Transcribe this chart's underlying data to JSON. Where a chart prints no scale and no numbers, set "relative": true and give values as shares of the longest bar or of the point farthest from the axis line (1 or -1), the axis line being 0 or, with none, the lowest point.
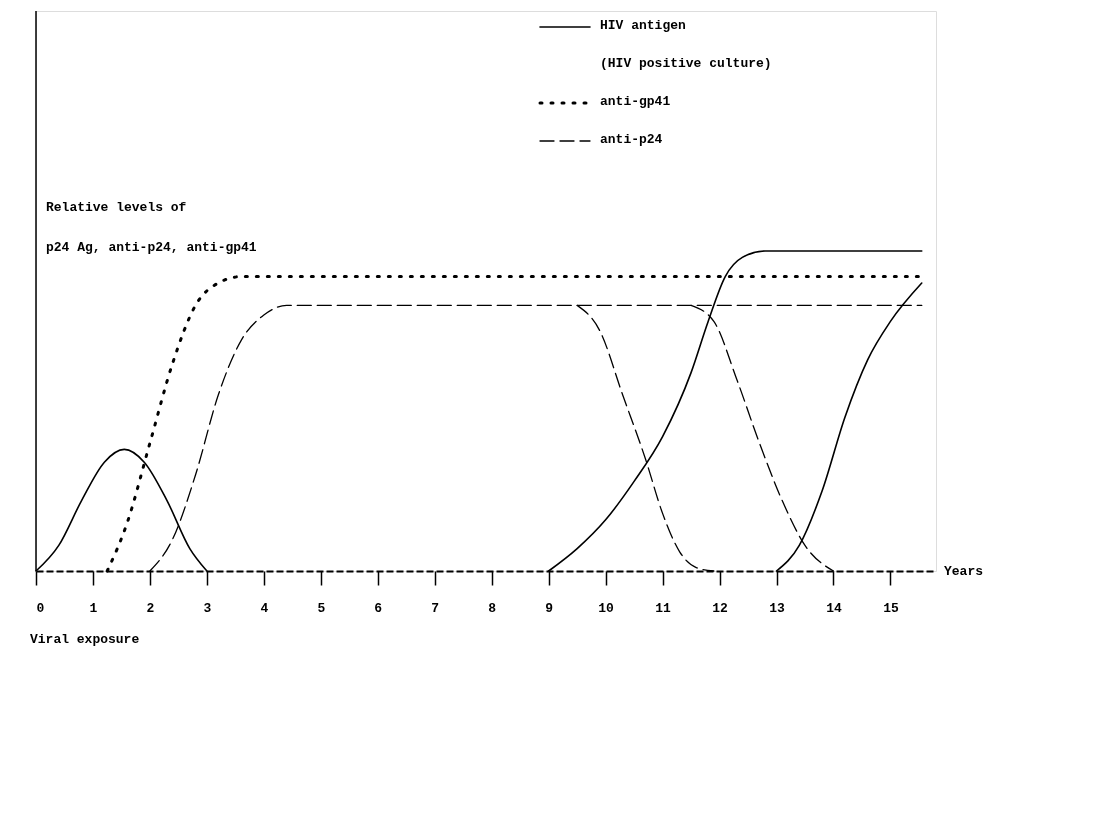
{
  "chart_data": {
    "type": "line",
    "relative": true,
    "xlabel": "Years",
    "ylabel": "Relative levels of\np24 Ag, anti-p24, anti-gp41",
    "xlim": [
      0,
      15.8
    ],
    "xticks": [
      0,
      1,
      2,
      3,
      4,
      5,
      6,
      7,
      8,
      9,
      10,
      11,
      12,
      13,
      14,
      15
    ],
    "grid": false,
    "legend": "top right",
    "annotations": [
      "Viral exposure"
    ],
    "series": [
      {
        "name": "HIV antigen\n(HIV positive culture)",
        "color": "#000000",
        "line_style": "solid",
        "x": [
          0,
          0.4,
          0.8,
          1.2,
          1.55,
          1.9,
          2.3,
          2.7,
          3.0
        ],
        "values": [
          0,
          0.08,
          0.22,
          0.34,
          0.38,
          0.34,
          0.22,
          0.07,
          0
        ]
      },
      {
        "color": "#000000",
        "line_style": "solid",
        "x": [
          9,
          9.5,
          10,
          10.5,
          11,
          11.5,
          11.8,
          12.1,
          12.4,
          12.8,
          15.55
        ],
        "values": [
          0,
          0.07,
          0.16,
          0.28,
          0.42,
          0.62,
          0.78,
          0.92,
          0.98,
          1.0,
          1.0
        ]
      },
      {
        "color": "#000000",
        "line_style": "solid",
        "x": [
          13,
          13.4,
          13.8,
          14.2,
          14.6,
          15.0,
          15.55
        ],
        "values": [
          0,
          0.08,
          0.25,
          0.48,
          0.66,
          0.78,
          0.9
        ]
      },
      {
        "name": "anti-gp41",
        "color": "#000000",
        "line_style": "dotted",
        "x": [
          1.25,
          1.6,
          2.0,
          2.4,
          2.8,
          3.2,
          3.6,
          15.55
        ],
        "values": [
          0,
          0.15,
          0.4,
          0.65,
          0.83,
          0.9,
          0.92,
          0.92
        ]
      },
      {
        "name": "anti-p24",
        "color": "#000000",
        "line_style": "dashed",
        "x": [
          2.0,
          2.4,
          2.8,
          3.2,
          3.6,
          4.0,
          4.4,
          15.55
        ],
        "values": [
          0,
          0.1,
          0.3,
          0.55,
          0.72,
          0.8,
          0.83,
          0.83
        ]
      },
      {
        "color": "#000000",
        "line_style": "dashed",
        "x": [
          9.5,
          9.9,
          10.3,
          10.7,
          11.0,
          11.3,
          11.6,
          11.9
        ],
        "values": [
          0.83,
          0.75,
          0.55,
          0.35,
          0.18,
          0.06,
          0.01,
          0
        ]
      },
      {
        "color": "#000000",
        "line_style": "dashed",
        "x": [
          11.5,
          11.9,
          12.3,
          12.7,
          13.1,
          13.5,
          14.0
        ],
        "values": [
          0.83,
          0.78,
          0.6,
          0.4,
          0.22,
          0.08,
          0
        ]
      }
    ]
  }
}
